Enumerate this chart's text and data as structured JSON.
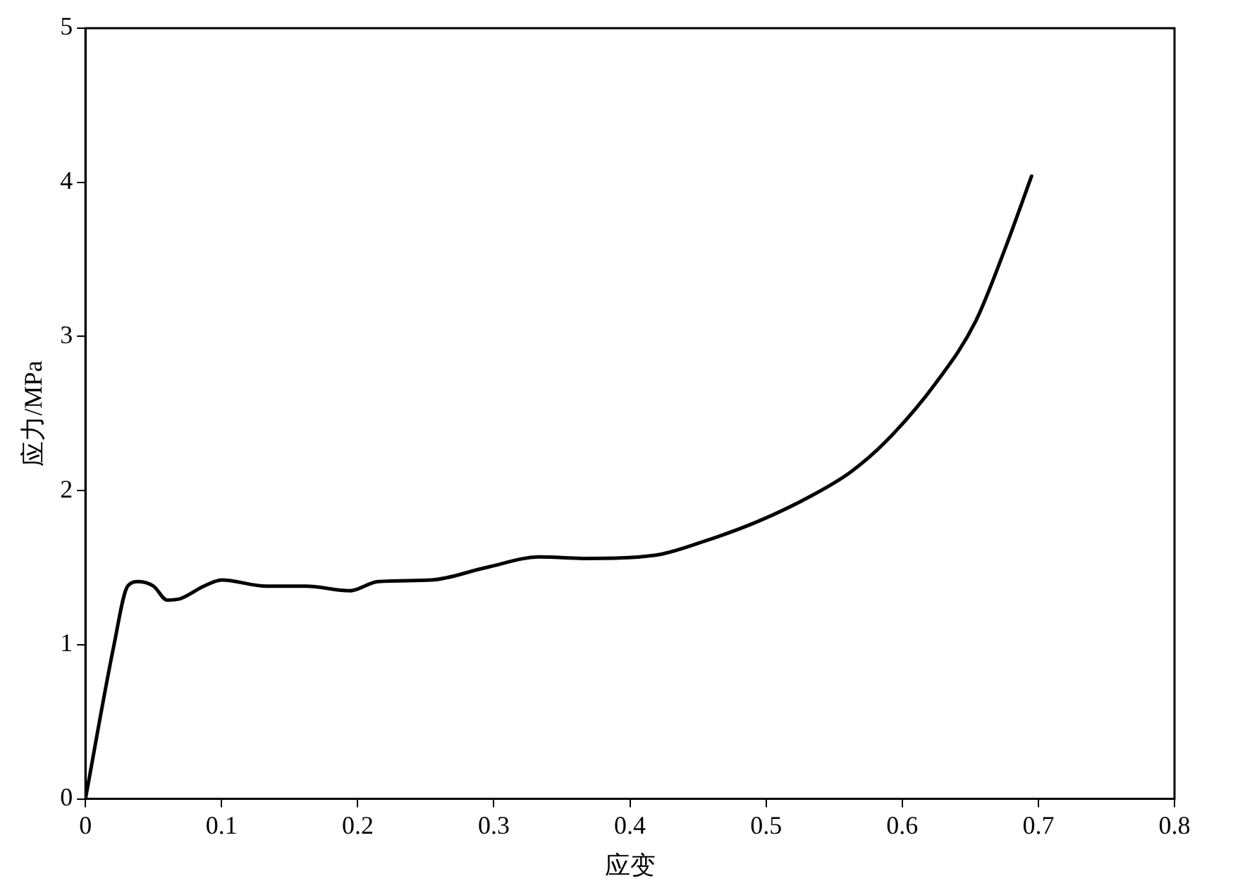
{
  "chart_data": {
    "type": "line",
    "xlabel": "应变",
    "ylabel": "应力/MPa",
    "xlim": [
      0,
      0.8
    ],
    "xticks": [
      0,
      0.1,
      0.2,
      0.3,
      0.4,
      0.5,
      0.6,
      0.7,
      0.8
    ],
    "ylim": [
      0,
      5
    ],
    "yticks": [
      0,
      1,
      2,
      3,
      4,
      5
    ],
    "grid": false,
    "legend": false,
    "marker": "none",
    "line_style": "solid",
    "series": [
      {
        "color": "#000000",
        "x": [
          0,
          0.021,
          0.031,
          0.039,
          0.05,
          0.06,
          0.07,
          0.087,
          0.1,
          0.133,
          0.162,
          0.194,
          0.215,
          0.254,
          0.294,
          0.334,
          0.366,
          0.418,
          0.454,
          0.494,
          0.534,
          0.562,
          0.587,
          0.624,
          0.654,
          0.676,
          0.695
        ],
        "values": [
          0,
          1.0,
          1.38,
          1.41,
          1.38,
          1.29,
          1.3,
          1.38,
          1.42,
          1.38,
          1.38,
          1.35,
          1.41,
          1.42,
          1.5,
          1.57,
          1.56,
          1.58,
          1.67,
          1.8,
          1.97,
          2.12,
          2.31,
          2.69,
          3.1,
          3.58,
          4.04
        ]
      }
    ]
  }
}
